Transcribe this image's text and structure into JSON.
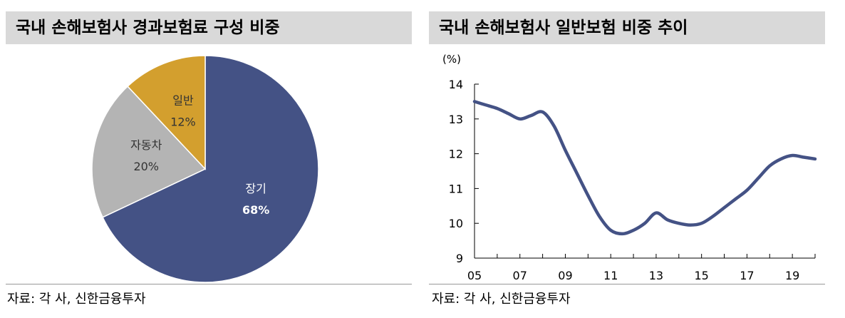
{
  "left": {
    "title": "국내 손해보험사 경과보험료 구성 비중",
    "source": "자료: 각 사, 신한금융투자"
  },
  "right": {
    "title": "국내 손해보험사 일반보험 비중 추이",
    "source": "자료: 각 사, 신한금융투자"
  },
  "chart_data": [
    {
      "type": "pie",
      "title": "국내 손해보험사 경과보험료 구성 비중",
      "slices": [
        {
          "label": "장기",
          "value": 68,
          "value_label": "68%",
          "color": "#445285",
          "text_color": "#ffffff"
        },
        {
          "label": "자동차",
          "value": 20,
          "value_label": "20%",
          "color": "#b4b4b4",
          "text_color": "#333333"
        },
        {
          "label": "일반",
          "value": 12,
          "value_label": "12%",
          "color": "#d39f2e",
          "text_color": "#333333"
        }
      ],
      "start": "12 o'clock, clockwise"
    },
    {
      "type": "line",
      "title": "국내 손해보험사 일반보험 비중 추이",
      "ylabel": "(%)",
      "ylim": [
        9,
        14
      ],
      "yticks": [
        9,
        10,
        11,
        12,
        13,
        14
      ],
      "xlim": [
        2005,
        2020
      ],
      "xticks": [
        {
          "value": 2005,
          "label": "05"
        },
        {
          "value": 2007,
          "label": "07"
        },
        {
          "value": 2009,
          "label": "09"
        },
        {
          "value": 2011,
          "label": "11"
        },
        {
          "value": 2013,
          "label": "13"
        },
        {
          "value": 2015,
          "label": "15"
        },
        {
          "value": 2017,
          "label": "17"
        },
        {
          "value": 2019,
          "label": "19"
        }
      ],
      "color": "#445285",
      "series": [
        {
          "x": [
            2005,
            2005.5,
            2006,
            2006.5,
            2007,
            2007.5,
            2008,
            2008.5,
            2009,
            2009.5,
            2010,
            2010.5,
            2011,
            2011.5,
            2012,
            2012.5,
            2013,
            2013.5,
            2014,
            2014.5,
            2015,
            2015.5,
            2016,
            2016.5,
            2017,
            2017.5,
            2018,
            2018.5,
            2019,
            2019.5,
            2020
          ],
          "y": [
            13.5,
            13.4,
            13.3,
            13.15,
            13.0,
            13.1,
            13.2,
            12.8,
            12.1,
            11.45,
            10.8,
            10.2,
            9.8,
            9.7,
            9.8,
            10.0,
            10.3,
            10.1,
            10.0,
            9.95,
            10.0,
            10.2,
            10.45,
            10.7,
            10.95,
            11.3,
            11.65,
            11.85,
            11.95,
            11.9,
            11.85
          ]
        }
      ],
      "grid": false
    }
  ]
}
